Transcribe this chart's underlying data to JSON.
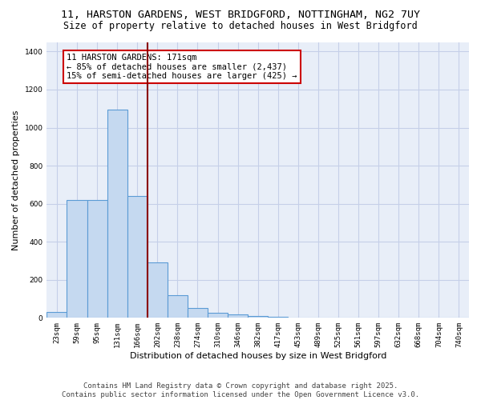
{
  "title_line1": "11, HARSTON GARDENS, WEST BRIDGFORD, NOTTINGHAM, NG2 7UY",
  "title_line2": "Size of property relative to detached houses in West Bridgford",
  "xlabel": "Distribution of detached houses by size in West Bridgford",
  "ylabel": "Number of detached properties",
  "categories": [
    "23sqm",
    "59sqm",
    "95sqm",
    "131sqm",
    "166sqm",
    "202sqm",
    "238sqm",
    "274sqm",
    "310sqm",
    "346sqm",
    "382sqm",
    "417sqm",
    "453sqm",
    "489sqm",
    "525sqm",
    "561sqm",
    "597sqm",
    "632sqm",
    "668sqm",
    "704sqm",
    "740sqm"
  ],
  "values": [
    30,
    620,
    620,
    1095,
    640,
    290,
    120,
    50,
    25,
    20,
    10,
    5,
    0,
    0,
    0,
    0,
    0,
    0,
    0,
    0,
    0
  ],
  "bar_color": "#c5d9f0",
  "bar_edge_color": "#5b9bd5",
  "vline_color": "#8b0000",
  "annotation_text": "11 HARSTON GARDENS: 171sqm\n← 85% of detached houses are smaller (2,437)\n15% of semi-detached houses are larger (425) →",
  "annotation_box_color": "white",
  "annotation_box_edge_color": "#cc0000",
  "ylim": [
    0,
    1450
  ],
  "yticks": [
    0,
    200,
    400,
    600,
    800,
    1000,
    1200,
    1400
  ],
  "background_color": "#e8eef8",
  "grid_color": "#c5cfe8",
  "footer_line1": "Contains HM Land Registry data © Crown copyright and database right 2025.",
  "footer_line2": "Contains public sector information licensed under the Open Government Licence v3.0.",
  "title_fontsize": 9.5,
  "subtitle_fontsize": 8.5,
  "axis_label_fontsize": 8,
  "tick_fontsize": 6.5,
  "annotation_fontsize": 7.5,
  "footer_fontsize": 6.5
}
